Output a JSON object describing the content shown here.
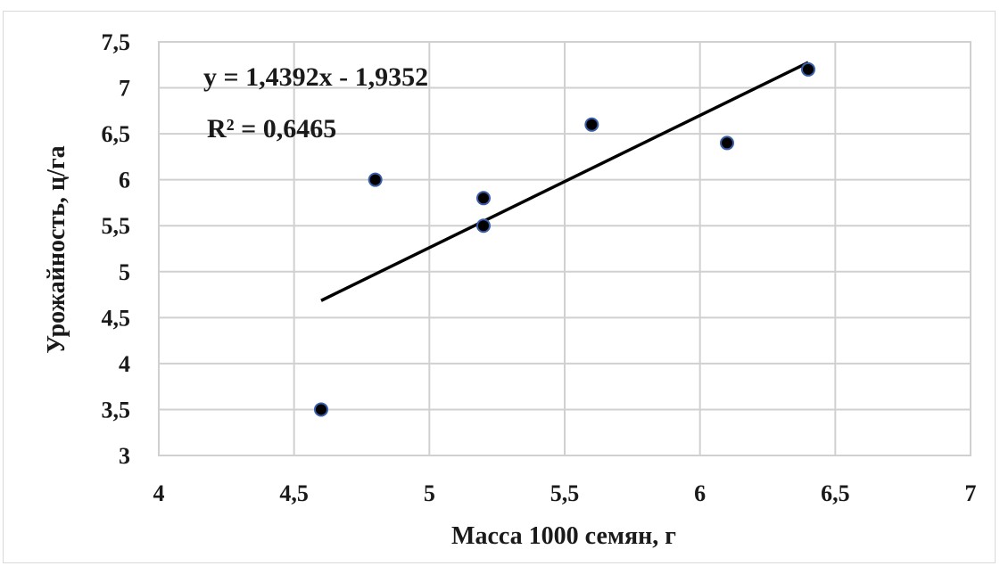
{
  "chart_data": {
    "type": "scatter",
    "xlabel": "Масса 1000 семян, г",
    "ylabel": "Урожайность, ц/га",
    "xlim": [
      4,
      7
    ],
    "ylim": [
      3,
      7.5
    ],
    "x_ticks": [
      "4",
      "4,5",
      "5",
      "5,5",
      "6",
      "6,5",
      "7"
    ],
    "y_ticks": [
      "3",
      "3,5",
      "4",
      "4,5",
      "5",
      "5,5",
      "6",
      "6,5",
      "7",
      "7,5"
    ],
    "grid": true,
    "points": [
      {
        "x": 4.6,
        "y": 3.5
      },
      {
        "x": 4.8,
        "y": 6.0
      },
      {
        "x": 5.2,
        "y": 5.5
      },
      {
        "x": 5.2,
        "y": 5.8
      },
      {
        "x": 5.6,
        "y": 6.6
      },
      {
        "x": 6.1,
        "y": 6.4
      },
      {
        "x": 6.4,
        "y": 7.2
      }
    ],
    "trendline": {
      "type": "linear",
      "slope": 1.4392,
      "intercept": -1.9352,
      "x_range": [
        4.6,
        6.4
      ]
    },
    "annotations": {
      "equation": "y = 1,4392x - 1,9352",
      "r_squared": "R² = 0,6465"
    },
    "colors": {
      "marker_fill": "#000000",
      "marker_edge": "#3a5fa8",
      "trendline": "#000000",
      "grid": "#d0d0d0"
    }
  }
}
